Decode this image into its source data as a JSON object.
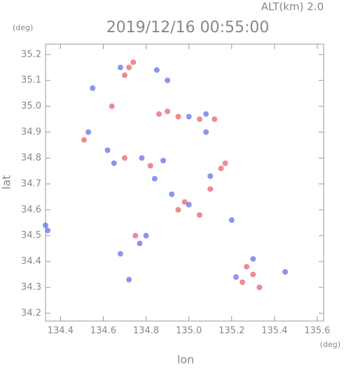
{
  "chart_data": {
    "type": "scatter",
    "title": "2019/12/16 00:55:00",
    "subtitle": "ALT(km) 2.0",
    "y_unit": "(deg)",
    "x_unit": "(deg)",
    "xlabel": "lon",
    "ylabel": "lat",
    "xlim": [
      134.33,
      135.63
    ],
    "ylim": [
      34.17,
      35.24
    ],
    "xticks": [
      134.4,
      134.6,
      134.8,
      {
        "value": 135,
        "label": "135.0"
      },
      135.2,
      135.4,
      135.6
    ],
    "yticks": [
      34.2,
      34.3,
      34.4,
      34.5,
      34.6,
      34.7,
      34.8,
      34.9,
      {
        "value": 35,
        "label": "35.0"
      },
      35.1,
      35.2
    ],
    "series": [
      {
        "color": "#e8646e",
        "x": [
          134.51,
          134.7,
          134.72,
          134.74,
          134.86,
          134.9,
          134.95,
          135.05,
          135.12,
          134.7,
          134.82,
          135.15,
          135.17,
          134.95,
          135.05,
          134.98,
          134.75,
          135.25,
          135.3,
          135.33,
          135.27,
          134.64,
          135.1
        ],
        "y": [
          34.87,
          35.12,
          35.15,
          35.17,
          34.97,
          34.98,
          34.96,
          34.95,
          34.95,
          34.8,
          34.77,
          34.76,
          34.78,
          34.6,
          34.58,
          34.63,
          34.5,
          34.32,
          34.35,
          34.3,
          34.38,
          35.0,
          34.68
        ]
      },
      {
        "color": "#6672e6",
        "x": [
          134.33,
          134.34,
          134.53,
          134.55,
          134.68,
          134.85,
          134.9,
          135.0,
          135.08,
          134.65,
          134.78,
          134.88,
          135.1,
          135.0,
          134.92,
          134.8,
          134.77,
          135.22,
          135.3,
          135.45,
          134.72,
          134.62,
          134.84,
          135.2,
          134.68,
          135.08
        ],
        "y": [
          34.54,
          34.52,
          34.9,
          35.07,
          35.15,
          35.14,
          35.1,
          34.96,
          34.97,
          34.78,
          34.8,
          34.79,
          34.73,
          34.62,
          34.66,
          34.5,
          34.47,
          34.34,
          34.41,
          34.36,
          34.33,
          34.83,
          34.72,
          34.56,
          34.43,
          34.9
        ]
      }
    ]
  }
}
